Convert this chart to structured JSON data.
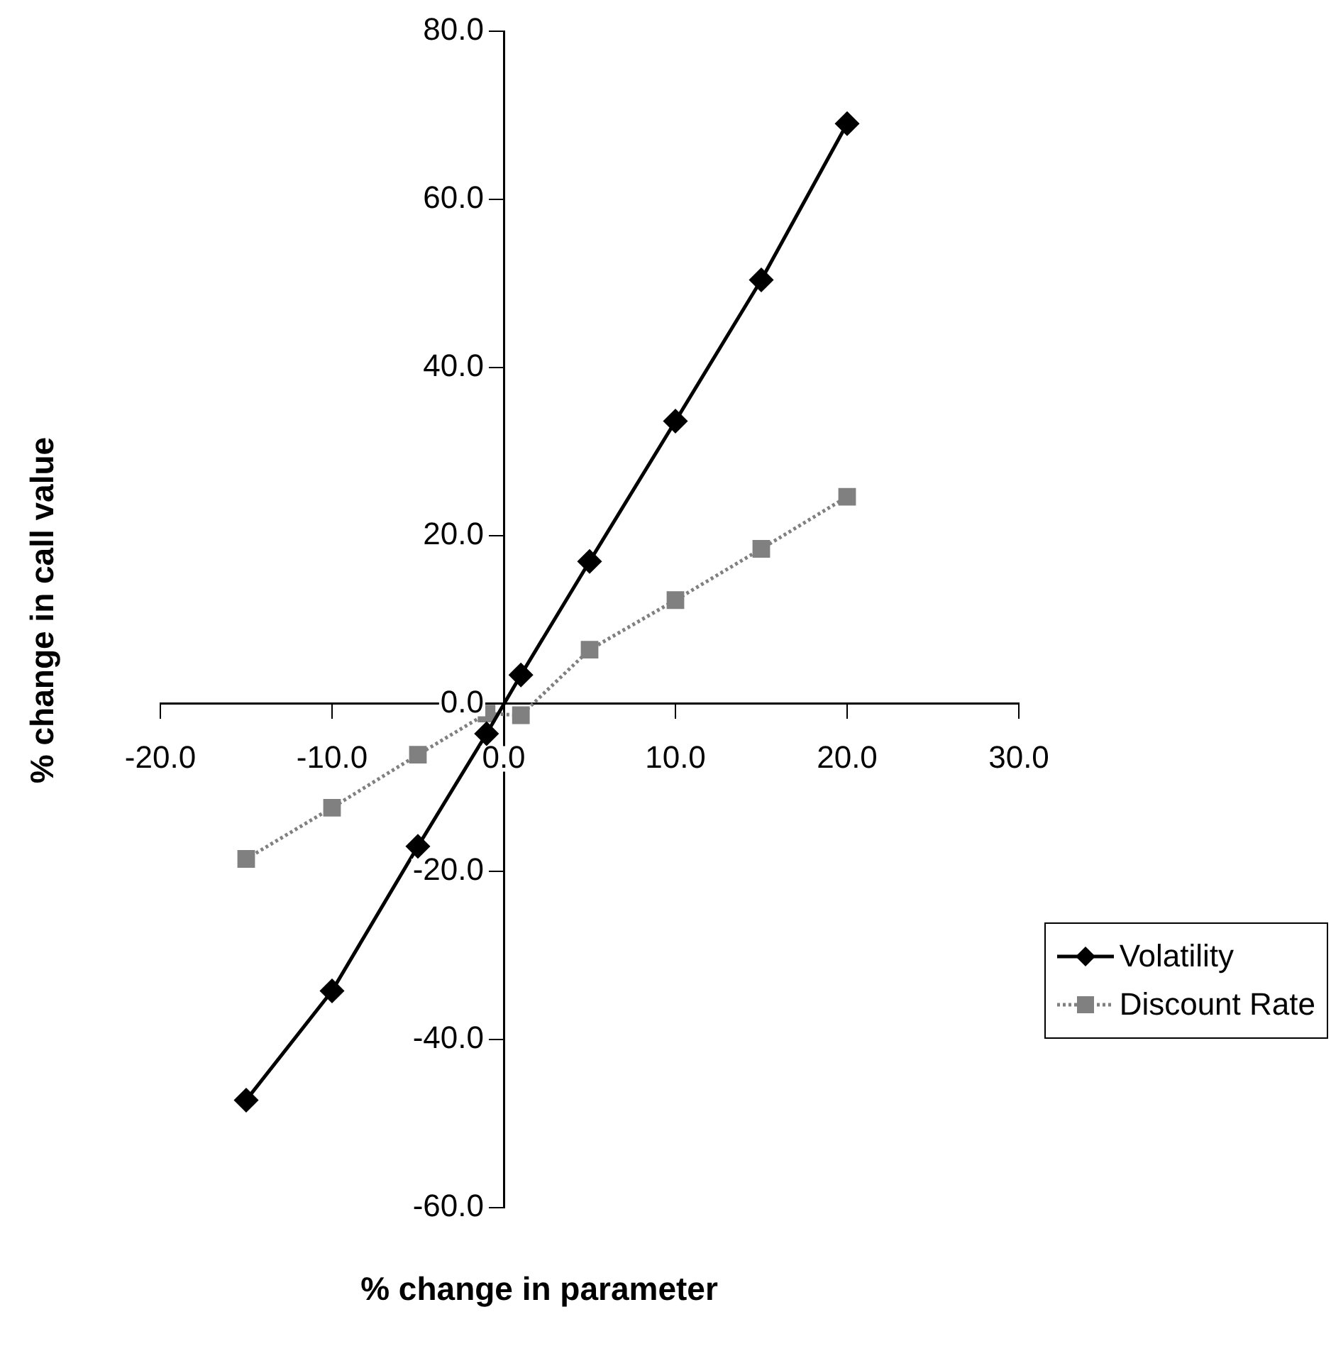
{
  "chart_data": {
    "type": "line",
    "xlabel": "% change in parameter",
    "ylabel": "% change in call value",
    "xlim": [
      -20,
      30
    ],
    "xticks": [
      {
        "value": -20,
        "label": "-20.0"
      },
      {
        "value": -10,
        "label": "-10.0"
      },
      {
        "value": 0,
        "label": "0.0"
      },
      {
        "value": 10,
        "label": "10.0"
      },
      {
        "value": 20,
        "label": "20.0"
      },
      {
        "value": 30,
        "label": "30.0"
      }
    ],
    "ylim": [
      -60,
      80
    ],
    "yticks": [
      {
        "value": -60,
        "label": "-60.0"
      },
      {
        "value": -40,
        "label": "-40.0"
      },
      {
        "value": -20,
        "label": "-20.0"
      },
      {
        "value": 0,
        "label": "0.0"
      },
      {
        "value": 20,
        "label": "20.0"
      },
      {
        "value": 40,
        "label": "40.0"
      },
      {
        "value": 60,
        "label": "60.0"
      },
      {
        "value": 80,
        "label": "80.0"
      }
    ],
    "grid": false,
    "legend": "bottom right",
    "series": [
      {
        "name": "Volatility",
        "color": "#000000",
        "marker": "diamond",
        "line_style": "solid",
        "x": [
          -15,
          -10,
          -5,
          -1,
          1,
          5,
          10,
          15,
          20
        ],
        "values": [
          -47.2,
          -34.2,
          -17.0,
          -3.6,
          3.4,
          16.9,
          33.6,
          50.4,
          69.0
        ]
      },
      {
        "name": "Discount Rate",
        "color": "#808080",
        "marker": "square",
        "line_style": "dotted",
        "x": [
          -15,
          -10,
          -5,
          -1,
          1,
          5,
          10,
          15,
          20
        ],
        "values": [
          -18.5,
          -12.4,
          -6.1,
          -1.2,
          -1.4,
          6.4,
          12.3,
          18.4,
          24.6
        ]
      }
    ]
  }
}
